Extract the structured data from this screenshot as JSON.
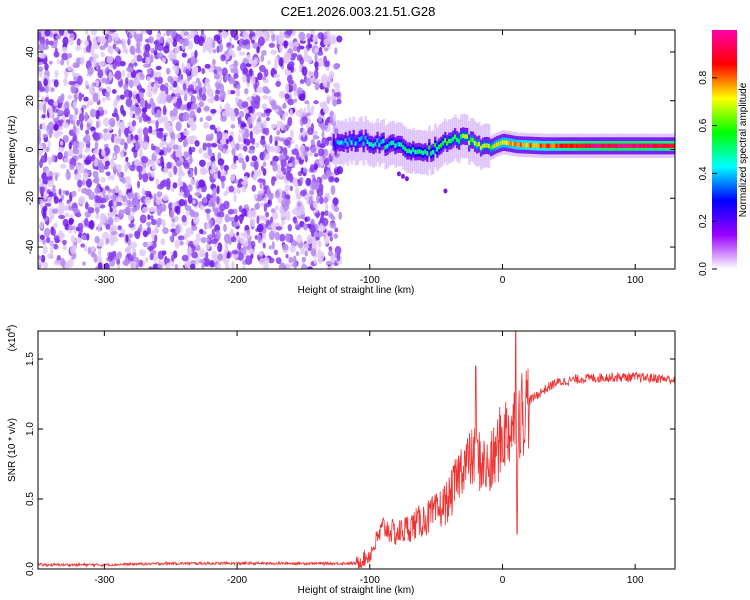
{
  "title": "C2E1.2026.003.21.51.G28",
  "chart_data": [
    {
      "type": "heatmap",
      "xlabel": "Height of straight line (km)",
      "ylabel": "Frequency (Hz)",
      "xlim": [
        -350,
        130
      ],
      "ylim": [
        -49,
        49
      ],
      "x_ticks": [
        -300,
        -200,
        -100,
        0,
        100
      ],
      "x_tick_labels": [
        "-300",
        "-200",
        "-100",
        "0",
        "100"
      ],
      "y_ticks": [
        -40,
        -20,
        0,
        20,
        40
      ],
      "y_tick_labels": [
        "-40",
        "-20",
        "0",
        "20",
        "40"
      ],
      "noise_region_x": [
        -350,
        -130
      ],
      "noise_fade_x": [
        -130,
        -118
      ],
      "signal_band": {
        "x_start": -128,
        "points_x": [
          -128,
          -110,
          -90,
          -75,
          -60,
          -45,
          -32,
          -20,
          -12,
          -5,
          0,
          10,
          30,
          60,
          90,
          110,
          130
        ],
        "points_freq": [
          2,
          4,
          2,
          1,
          -2,
          3,
          5,
          3,
          0,
          2,
          3,
          2,
          1.5,
          1.5,
          1.5,
          1.5,
          1.5
        ],
        "amplitude": [
          0.35,
          0.4,
          0.45,
          0.45,
          0.5,
          0.55,
          0.6,
          0.65,
          0.6,
          0.7,
          0.72,
          0.75,
          0.8,
          0.92,
          0.95,
          0.93,
          0.9
        ]
      },
      "colorbar": {
        "label": "Normalized spectral amplitude",
        "range": [
          0,
          1
        ],
        "ticks": [
          0.0,
          0.2,
          0.4,
          0.6,
          0.8
        ],
        "tick_labels": [
          "0.0",
          "0.2",
          "0.4",
          "0.6",
          "0.8"
        ],
        "colors": [
          "#ffffff",
          "#9900ff",
          "#0000ff",
          "#00ffff",
          "#00ff00",
          "#ffff00",
          "#ff0000",
          "#ff00aa"
        ]
      }
    },
    {
      "type": "line",
      "xlabel": "Height of straight line (km)",
      "ylabel": "SNR (10 * v/v)",
      "scale_label": "(x10",
      "scale_exponent": "4",
      "scale_close": ")",
      "xlim": [
        -350,
        130
      ],
      "ylim": [
        0,
        1.7
      ],
      "x_ticks": [
        -300,
        -200,
        -100,
        0,
        100
      ],
      "x_tick_labels": [
        "-300",
        "-200",
        "-100",
        "0",
        "100"
      ],
      "y_ticks": [
        0.0,
        0.5,
        1.0,
        1.5
      ],
      "y_tick_labels": [
        "0.0",
        "0.5",
        "1.0",
        "1.5"
      ],
      "line_color": "#ee3333",
      "series": [
        {
          "name": "SNR",
          "x": [
            -350,
            -300,
            -250,
            -200,
            -150,
            -110,
            -100,
            -90,
            -80,
            -70,
            -60,
            -50,
            -40,
            -30,
            -20,
            -10,
            0,
            10,
            20,
            30,
            40,
            60,
            80,
            100,
            120,
            130
          ],
          "values": [
            0.03,
            0.03,
            0.04,
            0.04,
            0.04,
            0.04,
            0.1,
            0.3,
            0.25,
            0.3,
            0.35,
            0.4,
            0.5,
            0.75,
            0.8,
            0.7,
            0.95,
            1.05,
            1.2,
            1.27,
            1.33,
            1.36,
            1.37,
            1.37,
            1.36,
            1.35
          ]
        }
      ]
    }
  ],
  "colors": {
    "frame": "#000000",
    "background": "#ffffff"
  }
}
